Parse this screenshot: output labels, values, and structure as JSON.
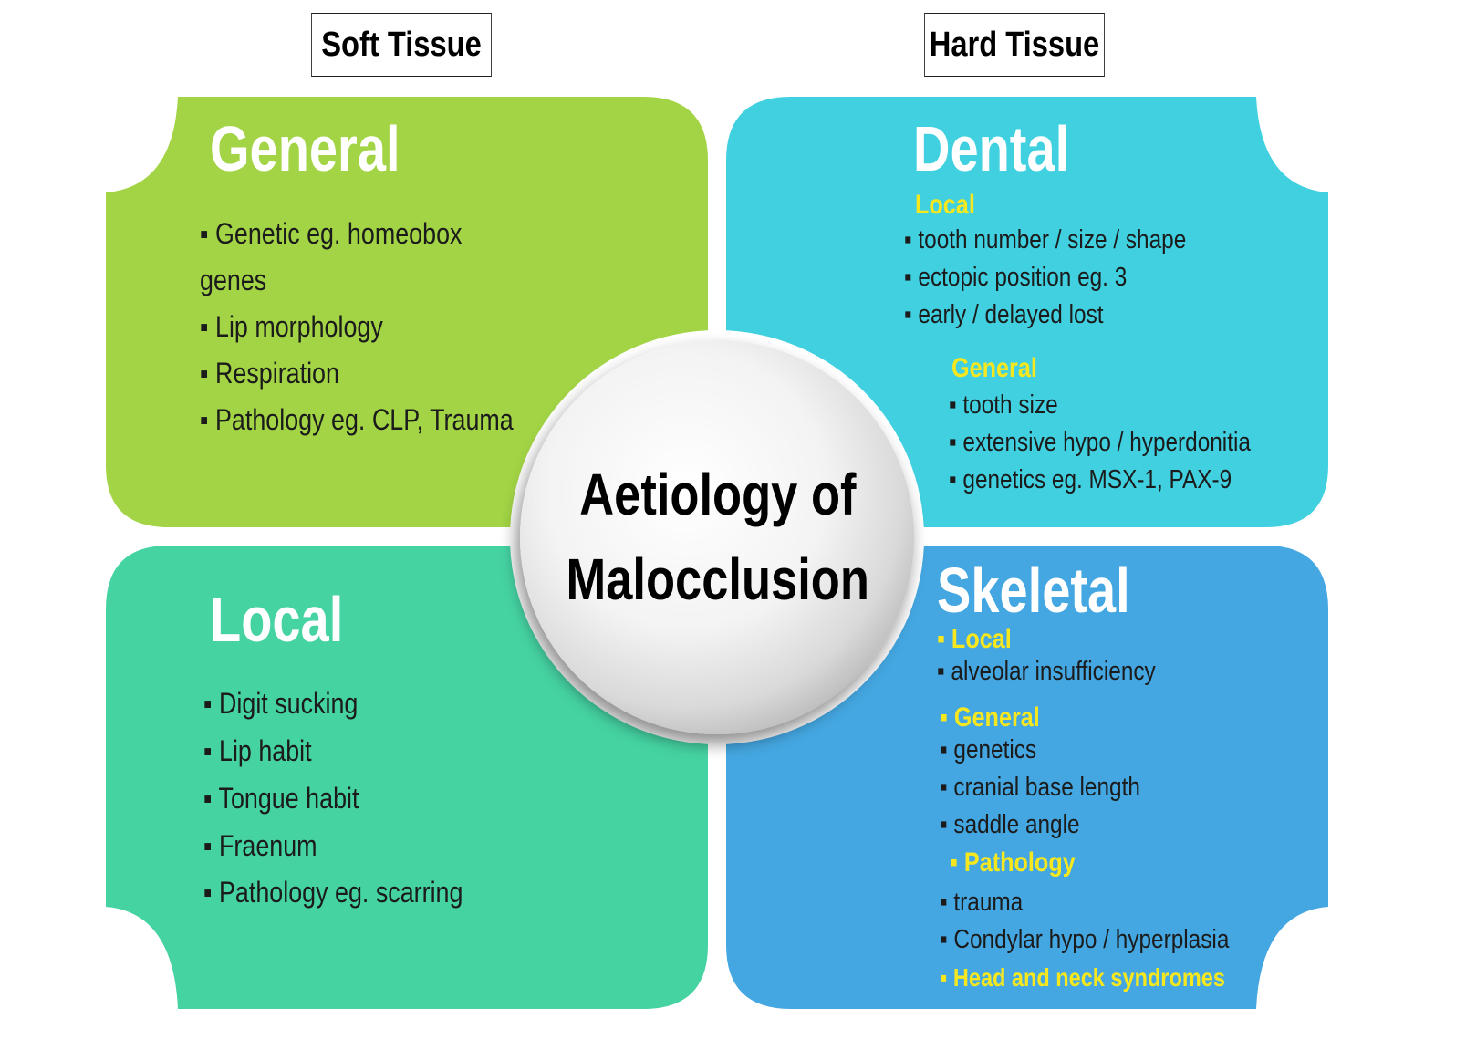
{
  "headers": {
    "soft": "Soft Tissue",
    "hard": "Hard Tissue"
  },
  "center": {
    "line1": "Aetiology of",
    "line2": "Malocclusion"
  },
  "colors": {
    "general": "#a2d445",
    "local": "#45d3a2",
    "dental": "#40d0e0",
    "skeletal": "#44a7e1",
    "subheading": "#f6e71f"
  },
  "general": {
    "title": "General",
    "items": [
      "▪ Genetic eg. homeobox",
      "genes",
      "▪ Lip morphology",
      "▪ Respiration",
      "▪ Pathology eg. CLP, Trauma"
    ]
  },
  "local": {
    "title": "Local",
    "items": [
      "▪ Digit sucking",
      "▪ Lip habit",
      "▪ Tongue habit",
      "▪ Fraenum",
      "▪ Pathology eg. scarring"
    ]
  },
  "dental": {
    "title": "Dental",
    "local_label": "Local",
    "local_items": [
      "▪ tooth number / size / shape",
      "▪ ectopic position eg. 3",
      "▪ early / delayed lost"
    ],
    "general_label": "General",
    "general_items": [
      "▪ tooth size",
      "▪ extensive hypo / hyperdonitia",
      "▪ genetics eg. MSX-1, PAX-9"
    ]
  },
  "skeletal": {
    "title": "Skeletal",
    "local_label": "▪ Local",
    "local_items": [
      "▪ alveolar insufficiency"
    ],
    "general_label": "▪ General",
    "general_items": [
      "▪ genetics",
      "▪ cranial base length",
      "▪ saddle angle"
    ],
    "pathology_label": "▪ Pathology",
    "pathology_items": [
      "▪ trauma",
      "▪ Condylar hypo / hyperplasia"
    ],
    "syndromes_label": "▪ Head and neck syndromes"
  }
}
